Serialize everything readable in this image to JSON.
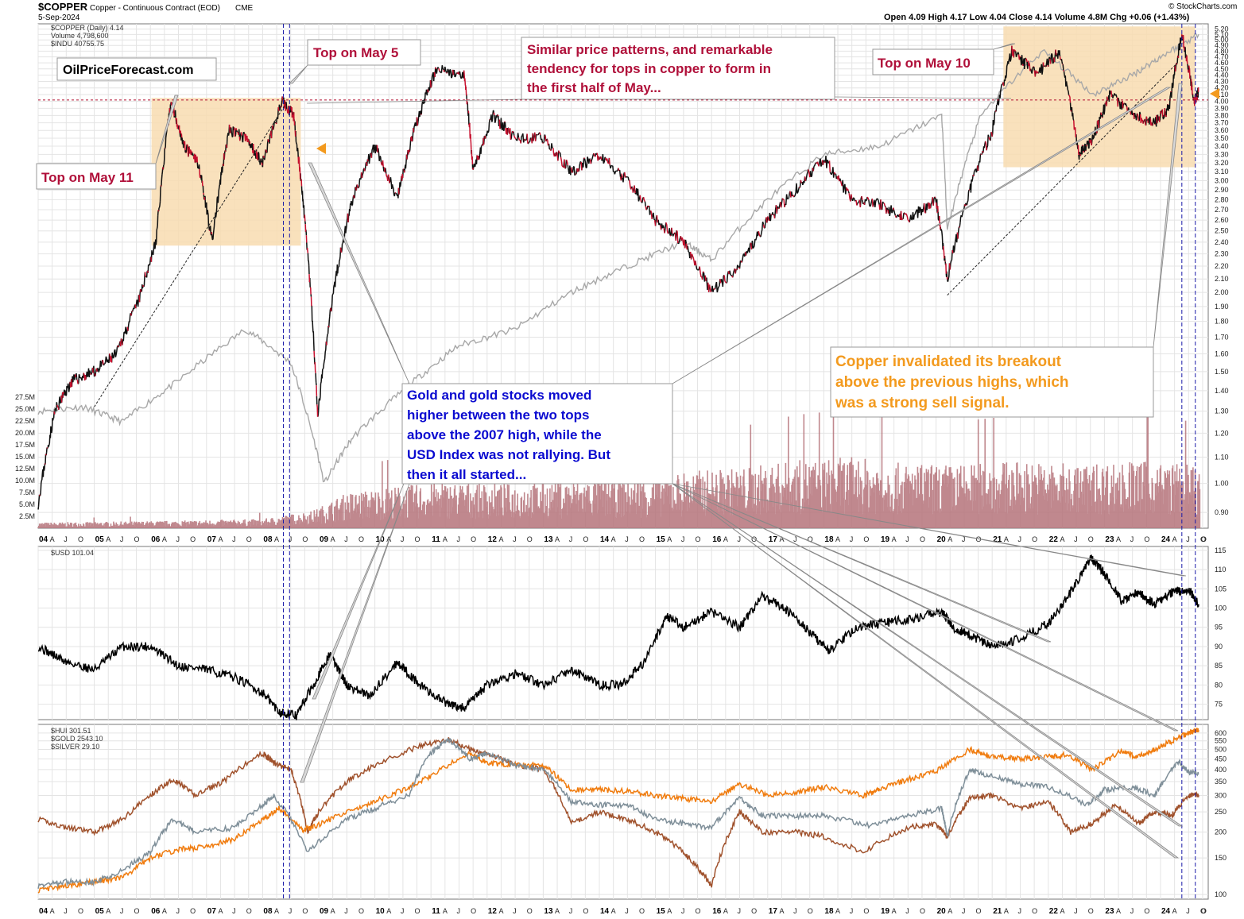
{
  "header": {
    "symbol": "$COPPER",
    "description": "Copper - Continuous Contract (EOD)",
    "exchange": "CME",
    "date": "5-Sep-2024",
    "ohlc": "Open 4.09  High 4.17  Low 4.04  Close 4.14  Volume 4.8M  Chg +0.06 (+1.43%)",
    "credit": "© StockCharts.com"
  },
  "legends": {
    "copper": "$COPPER (Daily) 4.14",
    "volume": "Volume 4,798,600",
    "indu": "$INDU 40755.75",
    "usd": "$USD 101.04",
    "hui": "$HUI 301.51",
    "gold": "$GOLD 2543.10",
    "silver": "$SILVER 29.10"
  },
  "colors": {
    "copper": "#111111",
    "copper_down": "#c8102e",
    "indu": "#a8a8a8",
    "volume": "#b5737a",
    "usd": "#000000",
    "hui": "#a0522d",
    "gold": "#f07c0f",
    "silver": "#7f8f99",
    "highlight": "#f8dcb0",
    "marker_line": "#1a1aa8",
    "resistance": "#b01030",
    "red_text": "#b0103a",
    "blue_text": "#0a0ad0",
    "orange_text": "#f39a1e"
  },
  "annotations": {
    "top_may11": "Top on May 11",
    "top_may5": "Top on May 5",
    "top_may10": "Top on May 10",
    "site": "OilPriceForecast.com",
    "similar": [
      "Similar price patterns, and remarkable",
      "tendency for tops in copper to form in",
      "the first half of May..."
    ],
    "gold_text": [
      "Gold and gold stocks moved",
      "higher between the two tops",
      "above the 2007 high, while the",
      "USD Index was not rallying. But",
      "then it all started..."
    ],
    "invalidated": [
      "Copper invalidated its breakout",
      "above the previous highs, which",
      "was a strong sell signal."
    ]
  },
  "x_axis": {
    "years": [
      "04",
      "05",
      "06",
      "07",
      "08",
      "09",
      "10",
      "11",
      "12",
      "13",
      "14",
      "15",
      "16",
      "17",
      "18",
      "19",
      "20",
      "21",
      "22",
      "23",
      "24"
    ],
    "months": [
      "A",
      "J",
      "O"
    ],
    "last_month": "O"
  },
  "chart_data": [
    {
      "type": "line",
      "title": "$COPPER (Daily)",
      "panel": "copper",
      "scale": "log",
      "ylim": [
        0.85,
        5.3
      ],
      "xlim": [
        2004.0,
        2024.85
      ],
      "yticks": [
        5.2,
        5.1,
        5.0,
        4.9,
        4.8,
        4.7,
        4.6,
        4.5,
        4.4,
        4.3,
        4.2,
        4.1,
        4.0,
        3.9,
        3.8,
        3.7,
        3.6,
        3.5,
        3.4,
        3.3,
        3.2,
        3.1,
        3.0,
        2.9,
        2.8,
        2.7,
        2.6,
        2.5,
        2.4,
        2.3,
        2.2,
        2.1,
        2.0,
        1.9,
        1.8,
        1.7,
        1.6,
        1.5,
        1.4,
        1.3,
        1.2,
        1.1,
        1.0,
        0.9
      ],
      "resistance_level": 4.02,
      "series": [
        {
          "name": "$COPPER",
          "x": [
            2004.0,
            2004.3,
            2004.6,
            2005.0,
            2005.4,
            2005.8,
            2006.1,
            2006.37,
            2006.6,
            2006.85,
            2007.1,
            2007.4,
            2007.7,
            2008.0,
            2008.35,
            2008.55,
            2008.75,
            2008.98,
            2009.3,
            2009.6,
            2010.0,
            2010.4,
            2010.7,
            2011.1,
            2011.6,
            2011.75,
            2012.1,
            2012.5,
            2013.0,
            2013.5,
            2014.0,
            2014.5,
            2015.0,
            2015.5,
            2016.0,
            2016.5,
            2017.0,
            2017.5,
            2018.0,
            2018.5,
            2019.0,
            2019.5,
            2020.0,
            2020.2,
            2020.6,
            2021.0,
            2021.35,
            2021.8,
            2022.2,
            2022.55,
            2022.8,
            2023.1,
            2023.5,
            2023.9,
            2024.15,
            2024.38,
            2024.6,
            2024.68
          ],
          "values": [
            0.93,
            1.3,
            1.45,
            1.5,
            1.6,
            1.95,
            2.4,
            4.0,
            3.4,
            3.2,
            2.4,
            3.6,
            3.5,
            3.2,
            4.0,
            3.8,
            2.6,
            1.27,
            2.1,
            2.8,
            3.4,
            2.8,
            3.6,
            4.5,
            4.4,
            3.1,
            3.8,
            3.5,
            3.5,
            3.1,
            3.3,
            3.0,
            2.6,
            2.4,
            2.0,
            2.2,
            2.6,
            2.9,
            3.25,
            2.8,
            2.75,
            2.6,
            2.8,
            2.1,
            2.9,
            3.6,
            4.8,
            4.4,
            4.8,
            3.3,
            3.5,
            4.1,
            3.8,
            3.7,
            3.9,
            5.1,
            4.0,
            4.14
          ]
        },
        {
          "name": "$INDU",
          "x": [
            2004.0,
            2004.8,
            2005.5,
            2006.5,
            2007.7,
            2008.5,
            2009.1,
            2009.6,
            2010.5,
            2011.5,
            2012.5,
            2013.5,
            2014.5,
            2015.5,
            2016.0,
            2017.0,
            2018.0,
            2019.0,
            2020.1,
            2020.2,
            2020.8,
            2021.9,
            2022.8,
            2023.5,
            2024.0,
            2024.68
          ],
          "values": [
            1.3,
            1.32,
            1.25,
            1.45,
            1.75,
            1.55,
            1.0,
            1.18,
            1.4,
            1.65,
            1.75,
            2.0,
            2.2,
            2.4,
            2.25,
            2.8,
            3.3,
            3.4,
            3.8,
            2.5,
            3.8,
            4.8,
            4.1,
            4.4,
            4.7,
            5.1
          ]
        }
      ]
    },
    {
      "type": "bar",
      "title": "Volume",
      "panel": "volume",
      "ylim": [
        0,
        30
      ],
      "yticks": [
        "27.5M",
        "25.0M",
        "22.5M",
        "20.0M",
        "17.5M",
        "15.0M",
        "12.5M",
        "10.0M",
        "7.5M",
        "5.0M",
        "2.5M"
      ],
      "tick_values": [
        27.5,
        25,
        22.5,
        20,
        17.5,
        15,
        12.5,
        10,
        7.5,
        5,
        2.5
      ],
      "x": [
        2004,
        2006,
        2008,
        2008.9,
        2009.5,
        2010.5,
        2011.5,
        2012.5,
        2013.5,
        2014.5,
        2015.5,
        2016.5,
        2017.5,
        2018.5,
        2019.5,
        2020.5,
        2021.5,
        2022.5,
        2023.5,
        2024.5
      ],
      "values": [
        0.8,
        1.0,
        1.3,
        2.5,
        5.0,
        6.0,
        6.5,
        6.2,
        6.8,
        7.0,
        8.0,
        8.5,
        9.5,
        10.0,
        9.0,
        9.0,
        9.5,
        9.0,
        9.5,
        9.0
      ]
    },
    {
      "type": "line",
      "title": "$USD",
      "panel": "usd",
      "ylim": [
        71,
        116
      ],
      "xlim": [
        2004.0,
        2024.85
      ],
      "yticks": [
        115,
        110,
        105,
        100,
        95,
        90,
        85,
        80,
        75
      ],
      "series": [
        {
          "name": "$USD",
          "x": [
            2004.0,
            2004.5,
            2005.0,
            2005.5,
            2006.0,
            2006.5,
            2007.0,
            2007.5,
            2008.0,
            2008.3,
            2008.6,
            2008.9,
            2009.2,
            2009.5,
            2009.9,
            2010.4,
            2010.8,
            2011.3,
            2011.6,
            2012.0,
            2012.5,
            2013.0,
            2013.5,
            2014.0,
            2014.4,
            2014.8,
            2015.2,
            2015.5,
            2016.0,
            2016.5,
            2016.9,
            2017.3,
            2017.8,
            2018.1,
            2018.6,
            2019.0,
            2019.5,
            2020.1,
            2020.3,
            2020.6,
            2021.0,
            2021.5,
            2022.0,
            2022.4,
            2022.75,
            2022.95,
            2023.3,
            2023.6,
            2023.9,
            2024.2,
            2024.5,
            2024.68
          ],
          "values": [
            90,
            86,
            84,
            90,
            90,
            85,
            84,
            82,
            78,
            73,
            72,
            80,
            88,
            80,
            77,
            86,
            80,
            75,
            74,
            80,
            83,
            80,
            84,
            80,
            80,
            86,
            98,
            95,
            99,
            95,
            103,
            100,
            93,
            89,
            95,
            96,
            97,
            99,
            95,
            93,
            90,
            92,
            96,
            104,
            113,
            110,
            102,
            104,
            101,
            104,
            105,
            101
          ]
        }
      ]
    },
    {
      "type": "line",
      "title": "$HUI / $GOLD / $SILVER",
      "panel": "metals",
      "ylim": [
        95,
        660
      ],
      "xlim": [
        2004.0,
        2024.85
      ],
      "yticks": [
        600,
        550,
        500,
        450,
        400,
        350,
        300,
        250,
        200,
        150,
        100
      ],
      "series": [
        {
          "name": "$HUI",
          "x": [
            2004.0,
            2004.5,
            2005.0,
            2005.5,
            2006.0,
            2006.4,
            2006.8,
            2007.3,
            2008.0,
            2008.2,
            2008.5,
            2008.8,
            2009.0,
            2009.5,
            2010.0,
            2010.8,
            2011.3,
            2011.7,
            2012.0,
            2012.5,
            2013.0,
            2013.5,
            2014.0,
            2014.5,
            2015.0,
            2015.5,
            2015.8,
            2016.0,
            2016.5,
            2016.9,
            2017.5,
            2018.0,
            2018.7,
            2019.5,
            2020.0,
            2020.2,
            2020.6,
            2021.0,
            2021.5,
            2022.0,
            2022.4,
            2022.8,
            2023.2,
            2023.6,
            2023.9,
            2024.2,
            2024.5,
            2024.68
          ],
          "values": [
            230,
            210,
            200,
            230,
            300,
            360,
            300,
            350,
            480,
            430,
            400,
            200,
            250,
            350,
            420,
            520,
            560,
            500,
            480,
            420,
            400,
            220,
            250,
            230,
            200,
            160,
            130,
            110,
            250,
            200,
            200,
            190,
            160,
            210,
            220,
            190,
            290,
            300,
            260,
            280,
            200,
            220,
            270,
            220,
            250,
            240,
            300,
            301
          ]
        },
        {
          "name": "$GOLD",
          "x": [
            2004.0,
            2004.5,
            2005.0,
            2005.5,
            2006.0,
            2006.5,
            2007.0,
            2007.5,
            2008.0,
            2008.3,
            2008.7,
            2008.9,
            2009.5,
            2010.0,
            2010.5,
            2011.0,
            2011.67,
            2012.0,
            2012.5,
            2013.0,
            2013.5,
            2014.0,
            2014.5,
            2015.0,
            2015.5,
            2016.0,
            2016.5,
            2017.0,
            2017.5,
            2018.0,
            2018.7,
            2019.0,
            2019.5,
            2020.0,
            2020.6,
            2021.0,
            2021.5,
            2022.0,
            2022.3,
            2022.8,
            2023.3,
            2023.6,
            2023.9,
            2024.2,
            2024.5,
            2024.68
          ],
          "values": [
            105,
            110,
            115,
            120,
            150,
            165,
            170,
            185,
            230,
            260,
            205,
            210,
            250,
            280,
            320,
            370,
            480,
            430,
            420,
            420,
            320,
            320,
            315,
            300,
            290,
            280,
            340,
            300,
            310,
            330,
            300,
            320,
            360,
            390,
            500,
            460,
            450,
            460,
            470,
            400,
            490,
            460,
            500,
            550,
            600,
            620
          ]
        },
        {
          "name": "$SILVER",
          "x": [
            2004.0,
            2004.5,
            2005.0,
            2005.5,
            2006.0,
            2006.4,
            2006.8,
            2007.5,
            2008.0,
            2008.2,
            2008.8,
            2009.5,
            2010.0,
            2010.6,
            2011.0,
            2011.3,
            2011.7,
            2012.0,
            2012.5,
            2013.0,
            2013.5,
            2014.0,
            2014.5,
            2015.0,
            2015.5,
            2016.0,
            2016.5,
            2016.9,
            2017.5,
            2018.0,
            2018.8,
            2019.5,
            2020.1,
            2020.2,
            2020.6,
            2021.0,
            2021.5,
            2022.0,
            2022.7,
            2023.0,
            2023.5,
            2023.9,
            2024.3,
            2024.5,
            2024.68
          ],
          "values": [
            110,
            115,
            115,
            130,
            160,
            230,
            200,
            210,
            270,
            300,
            160,
            230,
            260,
            300,
            480,
            560,
            450,
            480,
            420,
            400,
            280,
            270,
            270,
            230,
            220,
            210,
            290,
            240,
            240,
            240,
            215,
            240,
            260,
            190,
            400,
            370,
            340,
            330,
            270,
            320,
            330,
            300,
            440,
            390,
            380
          ]
        }
      ]
    }
  ]
}
